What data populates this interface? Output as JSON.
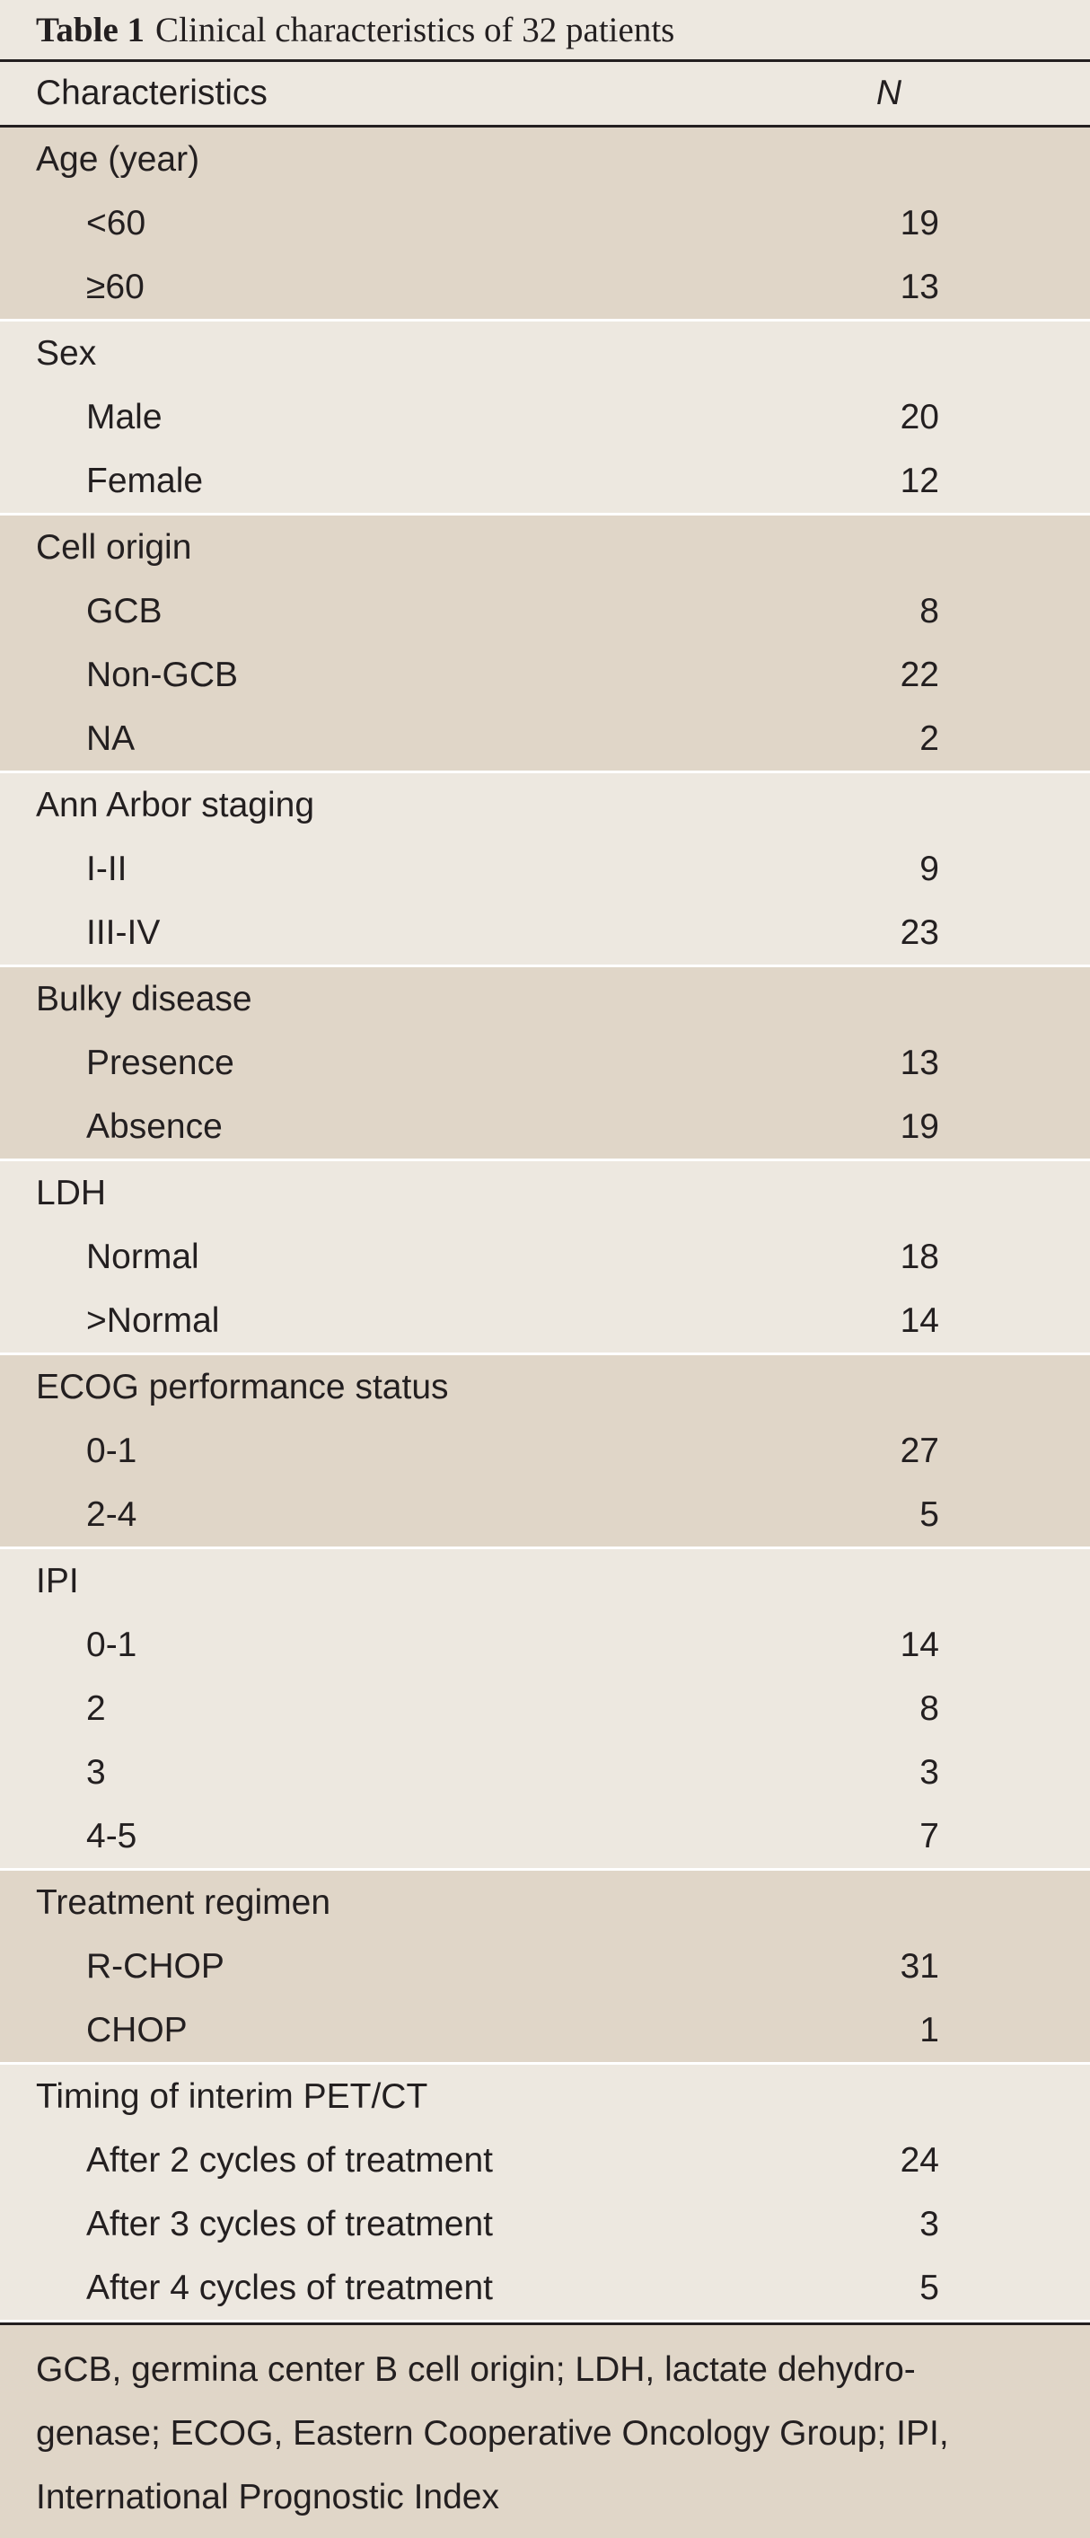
{
  "caption": {
    "label": "Table 1",
    "text": "Clinical characteristics of 32 patients"
  },
  "header": {
    "col1": "Characteristics",
    "col2": "N"
  },
  "groups": [
    {
      "title": "Age (year)",
      "items": [
        {
          "label": "<60",
          "value": "19"
        },
        {
          "label": "≥60",
          "value": "13"
        }
      ]
    },
    {
      "title": "Sex",
      "items": [
        {
          "label": "Male",
          "value": "20"
        },
        {
          "label": "Female",
          "value": "12"
        }
      ]
    },
    {
      "title": "Cell origin",
      "items": [
        {
          "label": "GCB",
          "value": "8"
        },
        {
          "label": "Non-GCB",
          "value": "22"
        },
        {
          "label": "NA",
          "value": "2"
        }
      ]
    },
    {
      "title": "Ann Arbor staging",
      "items": [
        {
          "label": "I-II",
          "value": "9"
        },
        {
          "label": "III-IV",
          "value": "23"
        }
      ]
    },
    {
      "title": "Bulky disease",
      "items": [
        {
          "label": "Presence",
          "value": "13"
        },
        {
          "label": "Absence",
          "value": "19"
        }
      ]
    },
    {
      "title": "LDH",
      "items": [
        {
          "label": "Normal",
          "value": "18"
        },
        {
          "label": ">Normal",
          "value": "14"
        }
      ]
    },
    {
      "title": "ECOG performance status",
      "items": [
        {
          "label": "0-1",
          "value": "27"
        },
        {
          "label": "2-4",
          "value": "5"
        }
      ]
    },
    {
      "title": "IPI",
      "items": [
        {
          "label": "0-1",
          "value": "14"
        },
        {
          "label": "2",
          "value": "8"
        },
        {
          "label": "3",
          "value": "3"
        },
        {
          "label": "4-5",
          "value": "7"
        }
      ]
    },
    {
      "title": "Treatment regimen",
      "items": [
        {
          "label": "R-CHOP",
          "value": "31"
        },
        {
          "label": "CHOP",
          "value": "1"
        }
      ]
    },
    {
      "title": "Timing of interim PET/CT",
      "items": [
        {
          "label": "After 2 cycles of treatment",
          "value": "24"
        },
        {
          "label": "After 3 cycles of treatment",
          "value": "3"
        },
        {
          "label": "After 4 cycles of treatment",
          "value": "5"
        }
      ]
    }
  ],
  "footnote": {
    "lines": [
      "GCB, germina center B cell origin; LDH, lactate dehydro-",
      "genase; ECOG, Eastern Cooperative Oncology Group; IPI,",
      "International Prognostic Index"
    ]
  },
  "colors": {
    "shade": "#e0d6c8",
    "plain": "#ede8e0",
    "text": "#231f20",
    "separator": "#ffffff"
  }
}
